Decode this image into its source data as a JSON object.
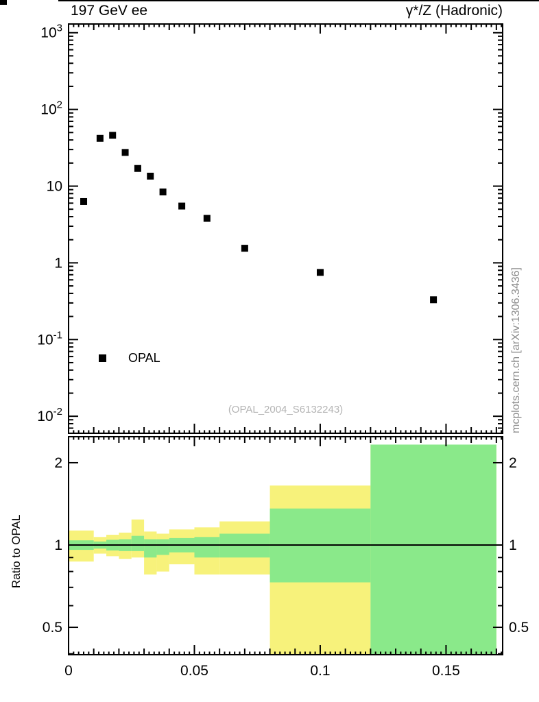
{
  "header": {
    "title_left": "197 GeV ee",
    "title_right": "γ*/Z (Hadronic)"
  },
  "side_label": "mcplots.cern.ch [arXiv:1306.3436]",
  "legend": {
    "label": "OPAL",
    "marker": "black-filled-square"
  },
  "watermark": "(OPAL_2004_S6132243)",
  "chart_data": [
    {
      "type": "scatter",
      "panel": "main",
      "title": "197 GeV ee — γ*/Z (Hadronic)",
      "xlim": [
        0,
        0.1725
      ],
      "yscale": "log",
      "ylim": [
        0.006,
        1300
      ],
      "xticks": [
        0,
        0.05,
        0.1,
        0.15
      ],
      "ytick_labels": [
        {
          "v": 1000,
          "m": "10",
          "e": "3"
        },
        {
          "v": 100,
          "m": "10",
          "e": "2"
        },
        {
          "v": 10,
          "m": "10"
        },
        {
          "v": 1,
          "m": "1"
        },
        {
          "v": 0.1,
          "m": "10",
          "e": "-1"
        },
        {
          "v": 0.01,
          "m": "10",
          "e": "-2"
        }
      ],
      "series": [
        {
          "name": "OPAL",
          "marker": "filled-square",
          "color": "#000000",
          "x": [
            0.006,
            0.0125,
            0.0175,
            0.0225,
            0.0275,
            0.0325,
            0.0375,
            0.045,
            0.055,
            0.07,
            0.1,
            0.145
          ],
          "y": [
            6.3,
            42,
            46,
            27.5,
            17,
            13.5,
            8.4,
            5.5,
            3.8,
            1.55,
            0.75,
            0.33
          ]
        }
      ],
      "watermark": "(OPAL_2004_S6132243)",
      "legend_position": "inside-lower-left"
    },
    {
      "type": "area",
      "panel": "ratio",
      "ylabel": "Ratio to OPAL",
      "yscale": "log",
      "ylim": [
        0.397,
        2.49
      ],
      "yticks": [
        0.5,
        1,
        2
      ],
      "ytick_labels": [
        "0.5",
        "1",
        "2"
      ],
      "yminor": [
        0.4,
        0.6,
        0.7,
        0.8,
        0.9
      ],
      "xticks": [
        0,
        0.05,
        0.1,
        0.15
      ],
      "xtick_labels": [
        "0",
        "0.05",
        "0.1",
        "0.15"
      ],
      "reference_line": 1.0,
      "colors": {
        "outer_band": "#f7f27b",
        "inner_band": "#8ae98a"
      },
      "bands": [
        {
          "x": [
            0,
            0.01
          ],
          "outer": [
            0.87,
            1.13
          ],
          "inner": [
            0.96,
            1.04
          ]
        },
        {
          "x": [
            0.01,
            0.015
          ],
          "outer": [
            0.93,
            1.07
          ],
          "inner": [
            0.97,
            1.03
          ]
        },
        {
          "x": [
            0.015,
            0.02
          ],
          "outer": [
            0.91,
            1.09
          ],
          "inner": [
            0.955,
            1.045
          ]
        },
        {
          "x": [
            0.02,
            0.025
          ],
          "outer": [
            0.89,
            1.11
          ],
          "inner": [
            0.95,
            1.05
          ]
        },
        {
          "x": [
            0.025,
            0.03
          ],
          "outer": [
            0.9,
            1.24
          ],
          "inner": [
            0.95,
            1.08
          ]
        },
        {
          "x": [
            0.03,
            0.035
          ],
          "outer": [
            0.78,
            1.12
          ],
          "inner": [
            0.9,
            1.05
          ]
        },
        {
          "x": [
            0.035,
            0.04
          ],
          "outer": [
            0.8,
            1.1
          ],
          "inner": [
            0.92,
            1.05
          ]
        },
        {
          "x": [
            0.04,
            0.05
          ],
          "outer": [
            0.85,
            1.14
          ],
          "inner": [
            0.94,
            1.06
          ]
        },
        {
          "x": [
            0.05,
            0.06
          ],
          "outer": [
            0.78,
            1.16
          ],
          "inner": [
            0.9,
            1.07
          ]
        },
        {
          "x": [
            0.06,
            0.08
          ],
          "outer": [
            0.78,
            1.22
          ],
          "inner": [
            0.9,
            1.1
          ]
        },
        {
          "x": [
            0.08,
            0.12
          ],
          "outer": [
            0.35,
            1.65
          ],
          "inner": [
            0.73,
            1.36
          ]
        },
        {
          "x": [
            0.12,
            0.17
          ],
          "outer": [
            0.35,
            2.33
          ],
          "inner": [
            0.35,
            2.33
          ]
        }
      ]
    }
  ]
}
